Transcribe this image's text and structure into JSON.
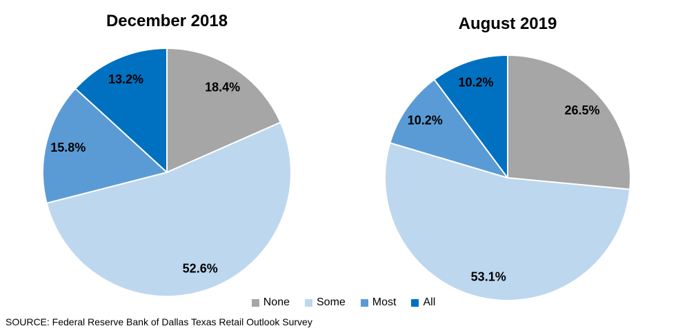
{
  "source_note": "SOURCE: Federal Reserve Bank of Dallas Texas Retail Outlook Survey",
  "legend": {
    "position": "bottom-center",
    "items": [
      {
        "label": "None",
        "color": "#A6A6A6"
      },
      {
        "label": "Some",
        "color": "#BDD7EE"
      },
      {
        "label": "Most",
        "color": "#5B9BD5"
      },
      {
        "label": "All",
        "color": "#0070C0"
      }
    ]
  },
  "chart_data": [
    {
      "type": "pie",
      "title": "December 2018",
      "categories": [
        "None",
        "Some",
        "Most",
        "All"
      ],
      "values": [
        18.4,
        52.6,
        15.8,
        13.2
      ],
      "labels": [
        "18.4%",
        "52.6%",
        "15.8%",
        "13.2%"
      ],
      "colors": [
        "#A6A6A6",
        "#BDD7EE",
        "#5B9BD5",
        "#0070C0"
      ],
      "start_angle_deg": 0,
      "direction": "clockwise",
      "slice_border_color": "#FFFFFF",
      "label_color": "#000000",
      "legend_position": "bottom-center"
    },
    {
      "type": "pie",
      "title": "August 2019",
      "categories": [
        "None",
        "Some",
        "Most",
        "All"
      ],
      "values": [
        26.5,
        53.1,
        10.2,
        10.2
      ],
      "labels": [
        "26.5%",
        "53.1%",
        "10.2%",
        "10.2%"
      ],
      "colors": [
        "#A6A6A6",
        "#BDD7EE",
        "#5B9BD5",
        "#0070C0"
      ],
      "start_angle_deg": 0,
      "direction": "clockwise",
      "slice_border_color": "#FFFFFF",
      "label_color": "#000000",
      "legend_position": "bottom-center"
    }
  ]
}
